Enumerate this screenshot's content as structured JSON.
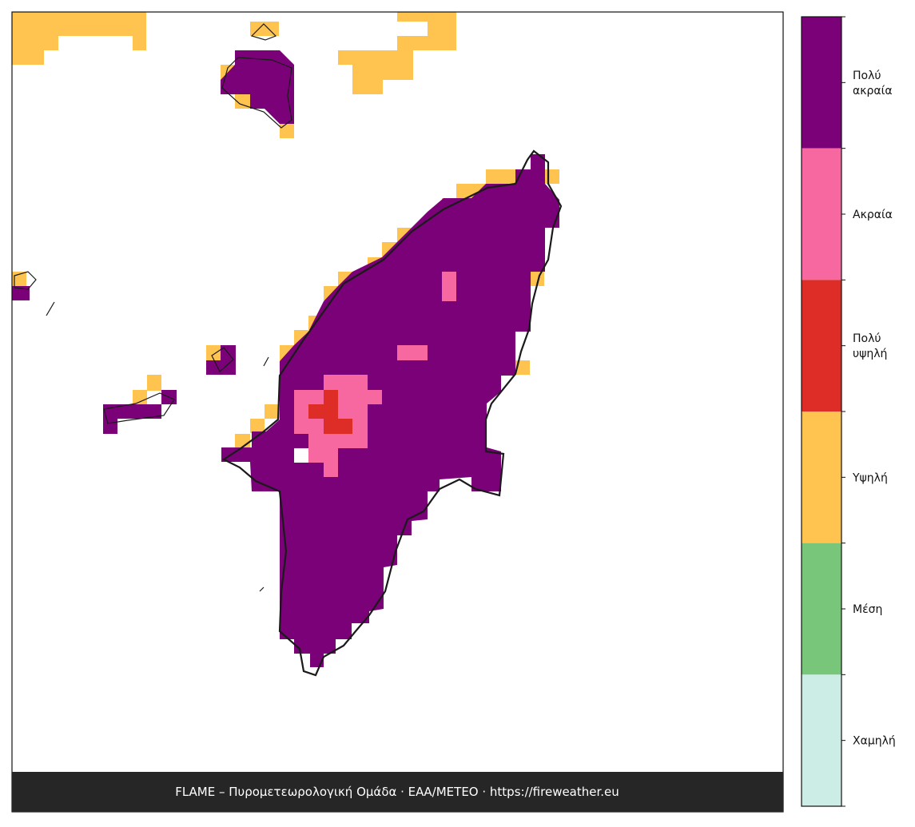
{
  "legend": {
    "items": [
      {
        "lines": [
          "Πολύ",
          "ακραία"
        ],
        "color": "#7a0177"
      },
      {
        "lines": [
          "Ακραία"
        ],
        "color": "#f768a1"
      },
      {
        "lines": [
          "Πολύ",
          "υψηλή"
        ],
        "color": "#de2d26"
      },
      {
        "lines": [
          "Υψηλή"
        ],
        "color": "#fec44f"
      },
      {
        "lines": [
          "Μέση"
        ],
        "color": "#78c679"
      },
      {
        "lines": [
          "Χαμηλή"
        ],
        "color": "#ccece6"
      }
    ]
  },
  "footer": "FLAME – Πυρομετεωρολογική Ομάδα · ΕΑΑ/METEO · https://fireweather.eu"
}
